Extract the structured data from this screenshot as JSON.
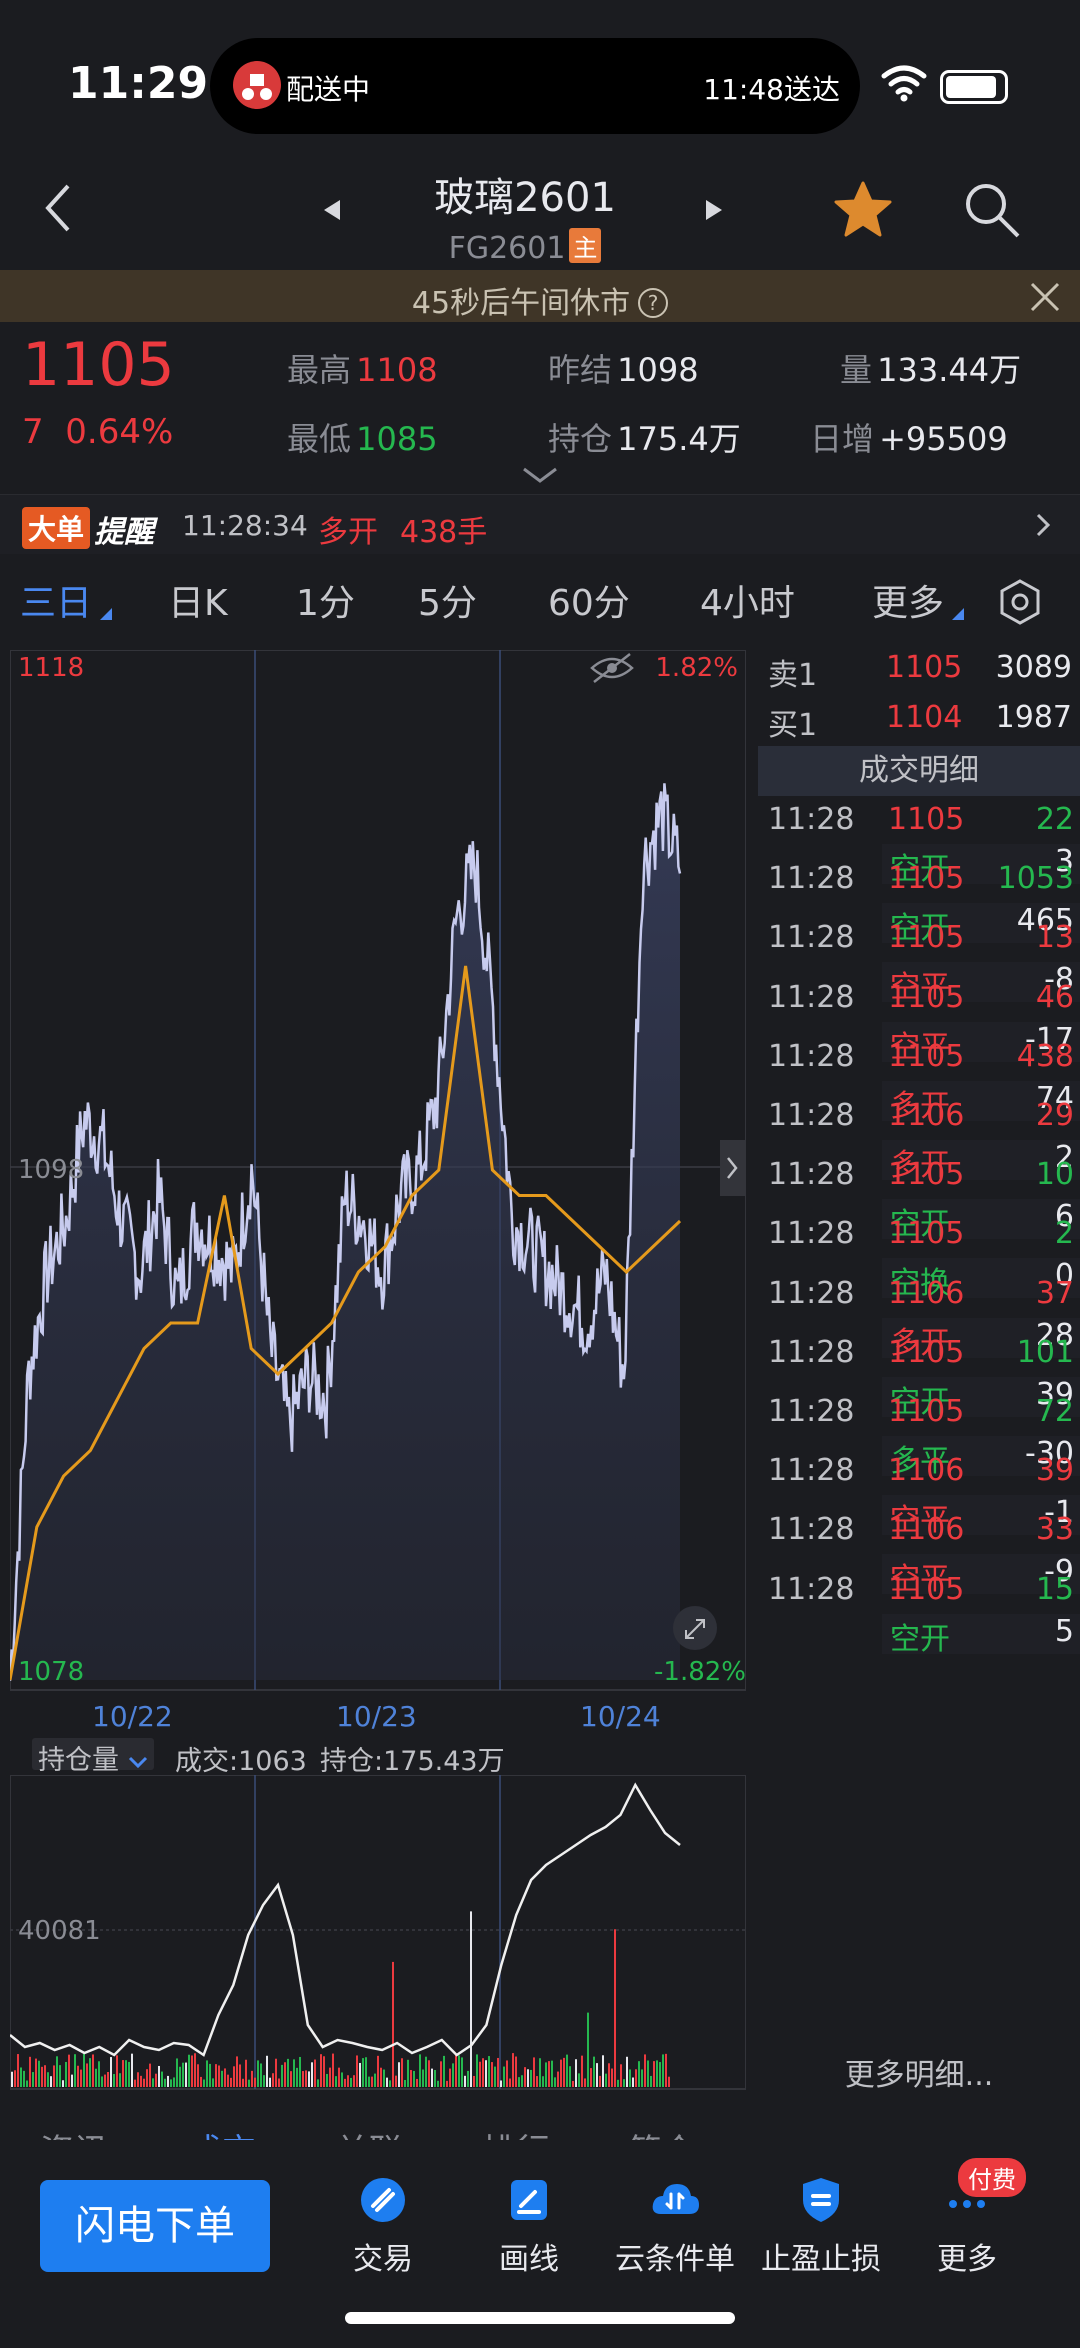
{
  "status_bar": {
    "time": "11:29",
    "delivery_status": "配送中",
    "delivery_eta": "11:48送达"
  },
  "header": {
    "title": "玻璃2601",
    "code": "FG2601",
    "main_badge": "主"
  },
  "notice": {
    "text": "45秒后午间休市",
    "help": "?"
  },
  "quote": {
    "price": "1105",
    "change": "7",
    "change_pct": "0.64%",
    "high_label": "最高",
    "high": "1108",
    "low_label": "最低",
    "low": "1085",
    "prev_settle_label": "昨结",
    "prev_settle": "1098",
    "open_interest_label": "持仓",
    "open_interest": "175.4万",
    "volume_label": "量",
    "volume": "133.44万",
    "daily_inc_label": "日增",
    "daily_inc": "+95509"
  },
  "alert": {
    "badge": "大单",
    "label": "提醒",
    "time": "11:28:34",
    "type": "多开",
    "amount": "438手"
  },
  "tabs": [
    {
      "label": "三日",
      "active": true
    },
    {
      "label": "日K",
      "active": false
    },
    {
      "label": "1分",
      "active": false
    },
    {
      "label": "5分",
      "active": false
    },
    {
      "label": "60分",
      "active": false
    },
    {
      "label": "4小时",
      "active": false
    },
    {
      "label": "更多",
      "active": false
    }
  ],
  "chart_data": {
    "type": "line",
    "y_high": "1118",
    "y_low": "1078",
    "y_mid": "1098",
    "pct_high": "1.82%",
    "pct_low": "-1.82%",
    "dates": [
      "10/22",
      "10/23",
      "10/24"
    ],
    "oi_selector": "持仓量",
    "volume_text": "成交:1063",
    "oi_text": "持仓:175.43万",
    "sub_axis_label": "40081",
    "price_series": [
      1078,
      1090,
      1094,
      1096,
      1100,
      1099,
      1096,
      1094,
      1097,
      1093,
      1096,
      1095,
      1094,
      1098,
      1091,
      1088,
      1090,
      1089,
      1097,
      1096,
      1094,
      1097,
      1098,
      1101,
      1108,
      1110,
      1104,
      1096,
      1095,
      1094,
      1093,
      1092,
      1094,
      1090,
      1110,
      1112,
      1110
    ],
    "avg_series": [
      1078,
      1084,
      1086,
      1087,
      1089,
      1091,
      1092,
      1092,
      1097,
      1091,
      1090,
      1091,
      1092,
      1094,
      1095,
      1097,
      1098,
      1106,
      1098,
      1097,
      1097,
      1096,
      1095,
      1094,
      1095,
      1096
    ]
  },
  "order_book": {
    "sell_label": "卖1",
    "sell_price": "1105",
    "sell_vol": "3089",
    "buy_label": "买1",
    "buy_price": "1104",
    "buy_vol": "1987"
  },
  "trades_header": "成交明细",
  "trades": [
    {
      "time": "11:28",
      "price": "1105",
      "vol": "22",
      "kind": "空开",
      "diff": "3",
      "price_c": "red",
      "vol_c": "green",
      "kind_c": "green"
    },
    {
      "time": "11:28",
      "price": "1105",
      "vol": "1053",
      "kind": "空开",
      "diff": "465",
      "price_c": "red",
      "vol_c": "green",
      "kind_c": "green"
    },
    {
      "time": "11:28",
      "price": "1105",
      "vol": "13",
      "kind": "空平",
      "diff": "-8",
      "price_c": "red",
      "vol_c": "red",
      "kind_c": "red"
    },
    {
      "time": "11:28",
      "price": "1105",
      "vol": "46",
      "kind": "空平",
      "diff": "-17",
      "price_c": "red",
      "vol_c": "red",
      "kind_c": "red"
    },
    {
      "time": "11:28",
      "price": "1105",
      "vol": "438",
      "kind": "多开",
      "diff": "74",
      "price_c": "red",
      "vol_c": "red",
      "kind_c": "red"
    },
    {
      "time": "11:28",
      "price": "1106",
      "vol": "29",
      "kind": "多开",
      "diff": "2",
      "price_c": "red",
      "vol_c": "red",
      "kind_c": "red"
    },
    {
      "time": "11:28",
      "price": "1105",
      "vol": "10",
      "kind": "空开",
      "diff": "6",
      "price_c": "red",
      "vol_c": "green",
      "kind_c": "green"
    },
    {
      "time": "11:28",
      "price": "1105",
      "vol": "2",
      "kind": "空换",
      "diff": "0",
      "price_c": "red",
      "vol_c": "green",
      "kind_c": "green"
    },
    {
      "time": "11:28",
      "price": "1106",
      "vol": "37",
      "kind": "多开",
      "diff": "28",
      "price_c": "red",
      "vol_c": "red",
      "kind_c": "red"
    },
    {
      "time": "11:28",
      "price": "1105",
      "vol": "101",
      "kind": "空开",
      "diff": "39",
      "price_c": "red",
      "vol_c": "green",
      "kind_c": "green"
    },
    {
      "time": "11:28",
      "price": "1105",
      "vol": "72",
      "kind": "多平",
      "diff": "-30",
      "price_c": "red",
      "vol_c": "green",
      "kind_c": "green"
    },
    {
      "time": "11:28",
      "price": "1106",
      "vol": "39",
      "kind": "空平",
      "diff": "-1",
      "price_c": "red",
      "vol_c": "red",
      "kind_c": "red"
    },
    {
      "time": "11:28",
      "price": "1106",
      "vol": "33",
      "kind": "空平",
      "diff": "-9",
      "price_c": "red",
      "vol_c": "red",
      "kind_c": "red"
    },
    {
      "time": "11:28",
      "price": "1105",
      "vol": "15",
      "kind": "空开",
      "diff": "5",
      "price_c": "red",
      "vol_c": "green",
      "kind_c": "green"
    }
  ],
  "more_detail": "更多明细...",
  "bottom_tabs": [
    "资讯",
    "成交",
    "关联",
    "排行",
    "简介"
  ],
  "bottom_bar": {
    "flash_order": "闪电下单",
    "trade": "交易",
    "draw": "画线",
    "cloud_order": "云条件单",
    "stop": "止盈止损",
    "more": "更多",
    "paid_badge": "付费"
  },
  "colors": {
    "up": "#ec3a3f",
    "down": "#25b84f",
    "accent": "#4a88f0",
    "avg_line": "#e59a1c",
    "price_line": "#c7cbee"
  }
}
